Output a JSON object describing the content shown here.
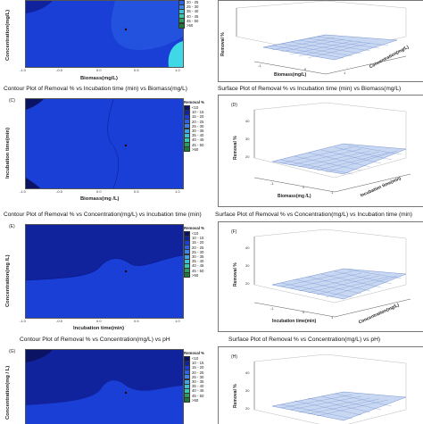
{
  "colors": {
    "blue_dark": "#0a1a8c",
    "blue_mid": "#1a3fd6",
    "blue_light": "#3b6ff2",
    "cyan": "#3fd8e6",
    "surface": "#c9d8f2"
  },
  "legend": {
    "title": "Removal %",
    "items": [
      "<10",
      "10 - 15",
      "15 - 20",
      "20 - 25",
      "25 - 30",
      "30 - 35",
      "35 - 40",
      "40 - 45",
      "45 - 50",
      ">50"
    ],
    "colors": [
      "#0b1464",
      "#10239c",
      "#1a3fd6",
      "#2c63e6",
      "#3c84ea",
      "#3fa3e6",
      "#3fbfd8",
      "#38c9b0",
      "#2c9c60",
      "#1f7a3a"
    ],
    "top_partial_items": [
      "20 - 25",
      "25 - 30",
      "35 - 40",
      "40 - 45",
      "45 - 50",
      ">50"
    ]
  },
  "rows": [
    {
      "contour_title": "",
      "surface_title": "",
      "contour_tag": "",
      "surface_tag": "",
      "contour": {
        "ylabel": "Concentration(mg/L)",
        "xlabel": "Biomass(mg/L)",
        "xticks": [
          "-1.0",
          "-0.5",
          "0.0",
          "0.5",
          "1.0"
        ]
      },
      "surface": {
        "zlabel": "Removal %",
        "xlabel": "Biomass(mg/L)",
        "ylabel": "Concentration(mg/L)",
        "xticks": [
          "-1",
          "0",
          "1"
        ],
        "yticks": [
          "-1",
          "0",
          "1"
        ]
      }
    },
    {
      "contour_title": "Contour Plot of Removal % vs Incubation time (min) vs Biomass(mg/L)",
      "surface_title": "Surface Plot of Removal % vs Incubation time (min) vs Biomass(mg/L)",
      "contour_tag": "(C)",
      "surface_tag": "(D)",
      "contour": {
        "ylabel": "Incubation time(min)",
        "xlabel": "Biomass(mg /L)",
        "xticks": [
          "-1.0",
          "-0.5",
          "0.0",
          "0.5",
          "1.0"
        ]
      },
      "surface": {
        "zlabel": "Removal %",
        "xlabel": "Biomass(mg /L)",
        "ylabel": "Incubation time(min)",
        "zticks": [
          "40",
          "30",
          "20"
        ],
        "xticks": [
          "-1",
          "0",
          "1"
        ],
        "yticks": [
          "-1",
          "0",
          "1"
        ]
      }
    },
    {
      "contour_title": "Contour Plot of Removal % vs Concentration(mg/L) vs Incubation time (min)",
      "surface_title": "Surface Plot of Removal % vs Concentration(mg/L) vs Incubation time (min)",
      "contour_tag": "(E)",
      "surface_tag": "(F)",
      "contour": {
        "ylabel": "Concentration(mg /L)",
        "xlabel": "Incubation time(min)",
        "xticks": [
          "-1.0",
          "-0.5",
          "0.0",
          "0.5",
          "1.0"
        ]
      },
      "surface": {
        "zlabel": "Removal %",
        "xlabel": "Incubation time(min)",
        "ylabel": "Concentration(mg/L)",
        "zticks": [
          "40",
          "30",
          "20"
        ],
        "xticks": [
          "-1",
          "0",
          "1"
        ],
        "yticks": [
          "-1",
          "0",
          "1"
        ]
      }
    },
    {
      "contour_title": "Contour Plot of Removal % vs Concentration(mg/L) vs pH",
      "surface_title": "Surface Plot of Removal % vs Concentration(mg/L) vs pH)",
      "contour_tag": "(G)",
      "surface_tag": "(H)",
      "contour": {
        "ylabel": "Concentration(mg / L)",
        "xlabel": "",
        "xticks": []
      },
      "surface": {
        "zlabel": "Removal %",
        "xlabel": "",
        "ylabel": "",
        "zticks": [
          "40",
          "30",
          "20"
        ],
        "xticks": [],
        "yticks": []
      }
    }
  ]
}
